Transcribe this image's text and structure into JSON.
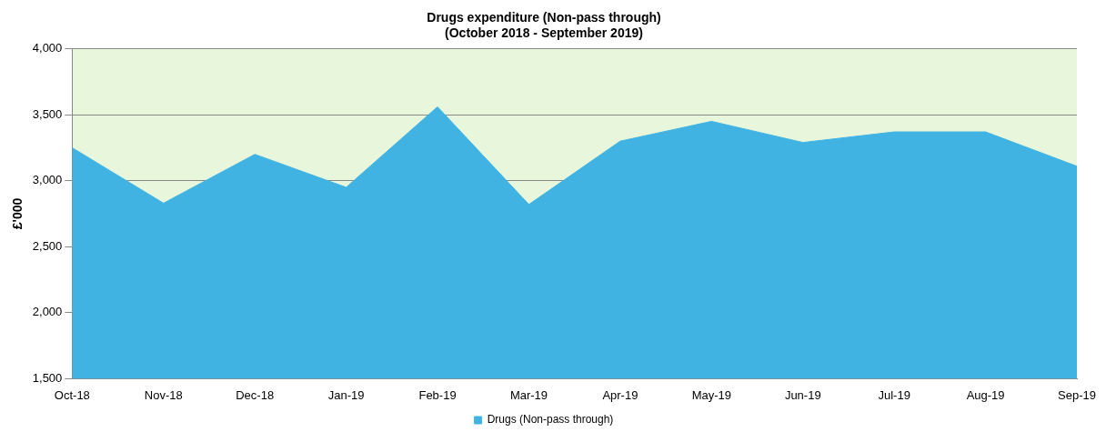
{
  "chart_data": {
    "type": "area",
    "title": [
      "Drugs expenditure (Non-pass through)",
      "(October 2018 - September 2019)"
    ],
    "ylabel": "£'000",
    "categories": [
      "Oct-18",
      "Nov-18",
      "Dec-18",
      "Jan-19",
      "Feb-19",
      "Mar-19",
      "Apr-19",
      "May-19",
      "Jun-19",
      "Jul-19",
      "Aug-19",
      "Sep-19"
    ],
    "series": [
      {
        "name": "Drugs (Non-pass through)",
        "color": "#41b3e3",
        "values": [
          3250,
          2830,
          3200,
          2950,
          3560,
          2820,
          3300,
          3450,
          3290,
          3370,
          3370,
          3110
        ]
      }
    ],
    "ylim": [
      1500,
      4000
    ],
    "yticks": [
      {
        "value": 1500,
        "label": "1,500"
      },
      {
        "value": 2000,
        "label": "2,000"
      },
      {
        "value": 2500,
        "label": "2,500"
      },
      {
        "value": 3000,
        "label": "3,000"
      },
      {
        "value": 3500,
        "label": "3,500"
      },
      {
        "value": 4000,
        "label": "4,000"
      }
    ],
    "grid": "y",
    "legend": "bottom"
  }
}
